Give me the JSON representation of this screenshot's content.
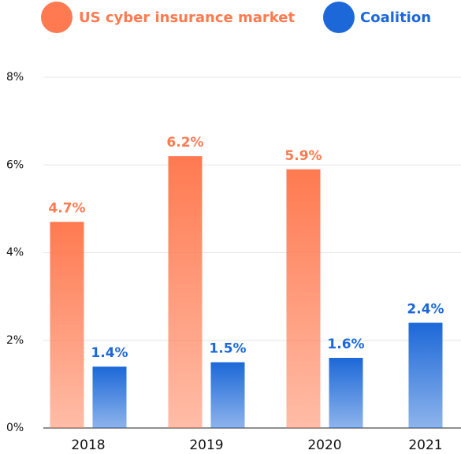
{
  "chart_data": {
    "type": "bar",
    "categories": [
      "2018",
      "2019",
      "2020",
      "2021"
    ],
    "series": [
      {
        "name": "US cyber insurance market",
        "color": "#ff7a50",
        "values": [
          4.7,
          6.2,
          5.9,
          null
        ],
        "value_labels": [
          "4.7%",
          "6.2%",
          "5.9%",
          null
        ]
      },
      {
        "name": "Coalition",
        "color": "#1c68d8",
        "values": [
          1.4,
          1.5,
          1.6,
          2.4
        ],
        "value_labels": [
          "1.4%",
          "1.5%",
          "1.6%",
          "2.4%"
        ]
      }
    ],
    "ylim": [
      0,
      8
    ],
    "yticks": [
      {
        "value": 0,
        "label": "0%"
      },
      {
        "value": 2,
        "label": "2%"
      },
      {
        "value": 4,
        "label": "4%"
      },
      {
        "value": 6,
        "label": "6%"
      },
      {
        "value": 8,
        "label": "8%"
      }
    ],
    "grid": true,
    "legend": "top"
  }
}
